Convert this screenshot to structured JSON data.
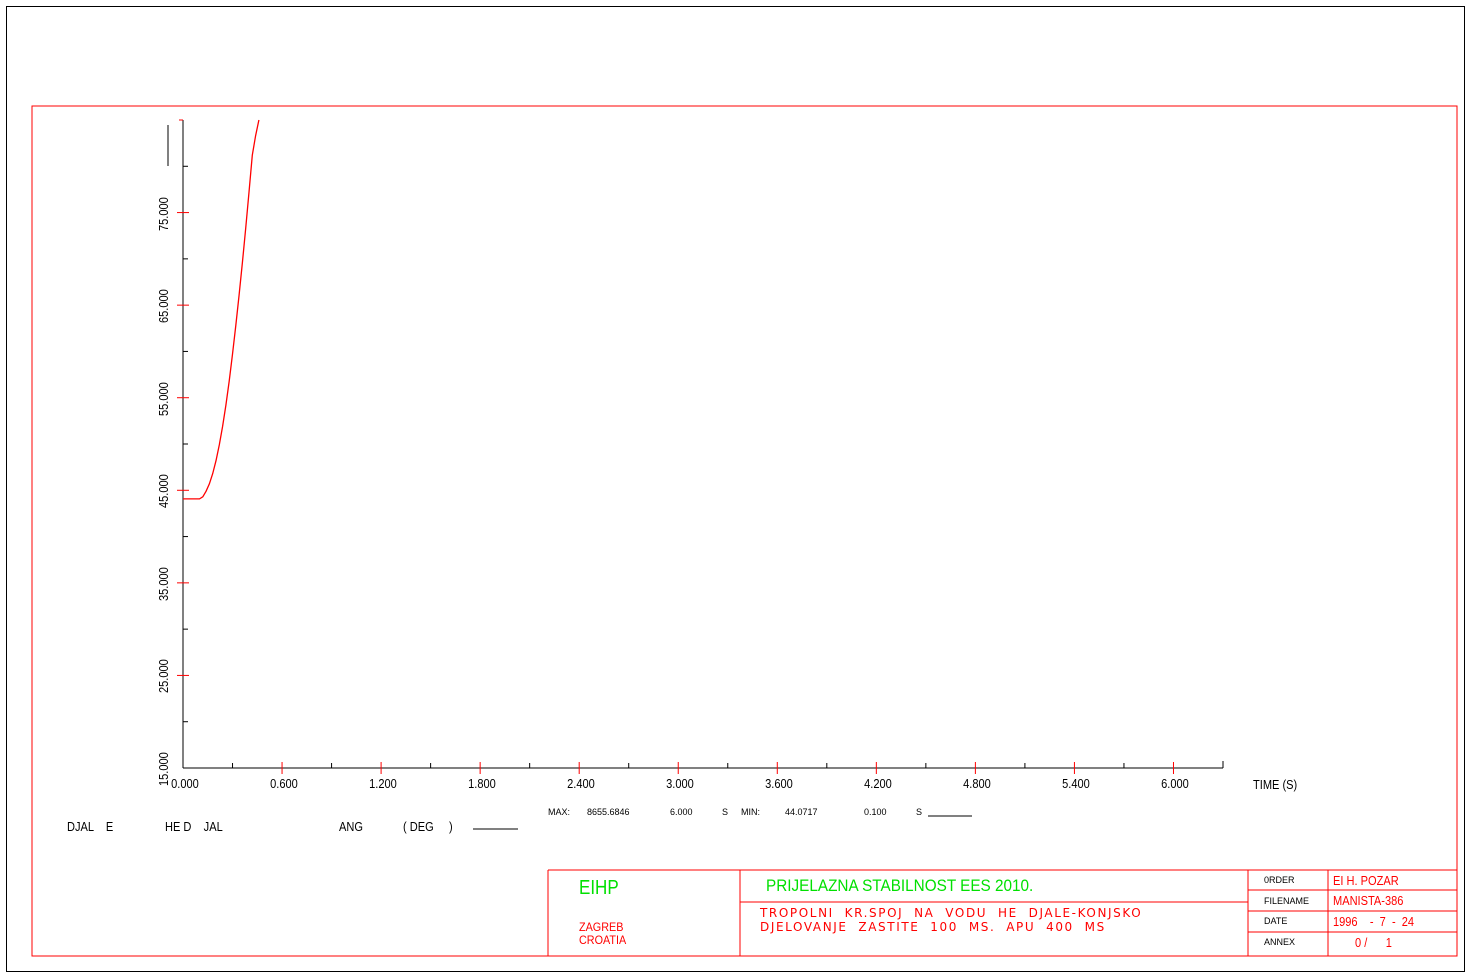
{
  "chart_data": {
    "type": "line",
    "x_ticks": [
      "0.000",
      "0.600",
      "1.200",
      "1.800",
      "2.400",
      "3.000",
      "3.600",
      "4.200",
      "4.800",
      "5.400",
      "6.000"
    ],
    "x_tick_values": [
      0,
      0.6,
      1.2,
      1.8,
      2.4,
      3.0,
      3.6,
      4.2,
      4.8,
      5.4,
      6.0
    ],
    "xlim": [
      0,
      6.3
    ],
    "xlabel": "TIME (S)",
    "y_ticks": [
      "15.000",
      "25.000",
      "35.000",
      "45.000",
      "55.000",
      "65.000",
      "75.000"
    ],
    "y_tick_values": [
      15,
      25,
      35,
      45,
      55,
      65,
      75
    ],
    "ylim": [
      15,
      85
    ],
    "series": [
      {
        "name": "DJAL    E              HE D    JAL                                  ANG        ( DEG     )",
        "color": "#ff0000",
        "x": [
          0.0,
          0.06,
          0.1,
          0.12,
          0.14,
          0.16,
          0.18,
          0.2,
          0.22,
          0.24,
          0.26,
          0.28,
          0.3,
          0.32,
          0.34,
          0.36,
          0.38,
          0.4,
          0.42,
          0.44,
          0.46
        ],
        "y": [
          44.07,
          44.07,
          44.07,
          44.3,
          44.9,
          45.7,
          46.8,
          48.2,
          49.9,
          51.9,
          54.2,
          56.8,
          59.7,
          62.8,
          66.1,
          69.6,
          73.3,
          77.2,
          81.2,
          83.3,
          85.0
        ]
      }
    ],
    "stats": {
      "max_label": "MAX:",
      "max_value": "8655.6846",
      "max_time": "6.000",
      "max_unit": "S",
      "min_label": "MIN:",
      "min_value": "44.0717",
      "min_time": "0.100",
      "min_unit": "S"
    }
  },
  "legend": {
    "var1": "DJAL    E",
    "var2": "HE D    JAL",
    "quantity": "ANG",
    "unit": "( DEG     )"
  },
  "title_block": {
    "institute": "EIHP",
    "city": "ZAGREB",
    "country": "CROATIA",
    "title": "PRIJELAZNA STABILNOST EES 2010.",
    "description_line1": "TROPOLNI  KR.SPOJ  NA  VODU  HE  DJALE-KONJSKO",
    "description_line2": "DJELOVANJE  ZASTITE  100  MS.  APU  400  MS",
    "order_label": "0RDER",
    "order_value": "EI H. POZAR",
    "filename_label": "FILENAME",
    "filename_value": "MANISTA-386",
    "date_label": "DATE",
    "date_value": "1996    -  7  -  24",
    "annex_label": "ANNEX",
    "annex_value": "0 /      1"
  },
  "colors": {
    "frame": "#ff0000",
    "curve": "#ff0000",
    "axis": "#000000",
    "green_text": "#00e000",
    "red_text": "#ff0000"
  }
}
